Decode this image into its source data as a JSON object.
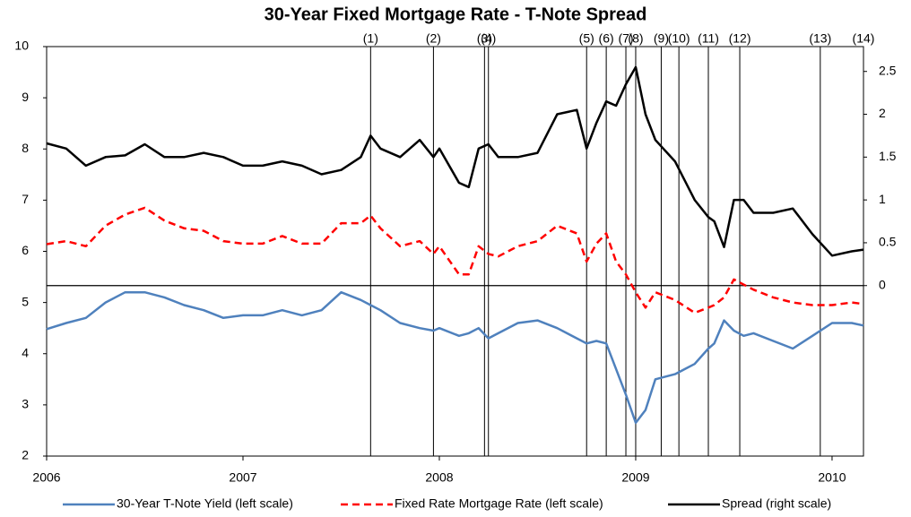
{
  "chart_data": {
    "type": "line",
    "title": "30-Year Fixed Mortgage Rate - T-Note Spread",
    "x": [
      2006.0,
      2006.1,
      2006.2,
      2006.3,
      2006.4,
      2006.5,
      2006.6,
      2006.7,
      2006.8,
      2006.9,
      2007.0,
      2007.1,
      2007.2,
      2007.3,
      2007.4,
      2007.5,
      2007.6,
      2007.65,
      2007.7,
      2007.8,
      2007.9,
      2007.97,
      2008.0,
      2008.1,
      2008.15,
      2008.2,
      2008.25,
      2008.3,
      2008.4,
      2008.5,
      2008.6,
      2008.7,
      2008.75,
      2008.8,
      2008.85,
      2008.9,
      2008.95,
      2009.0,
      2009.05,
      2009.1,
      2009.2,
      2009.3,
      2009.37,
      2009.4,
      2009.45,
      2009.5,
      2009.55,
      2009.6,
      2009.7,
      2009.8,
      2009.9,
      2010.0,
      2010.1,
      2010.16
    ],
    "series": [
      {
        "name": "30-Year T-Note Yield (left scale)",
        "color": "#4f81bd",
        "style": "solid",
        "values": [
          4.48,
          4.6,
          4.7,
          5.0,
          5.2,
          5.2,
          5.1,
          4.95,
          4.85,
          4.7,
          4.75,
          4.75,
          4.85,
          4.75,
          4.85,
          5.2,
          5.05,
          4.95,
          4.85,
          4.6,
          4.5,
          4.45,
          4.5,
          4.35,
          4.4,
          4.5,
          4.3,
          4.4,
          4.6,
          4.65,
          4.5,
          4.3,
          4.2,
          4.25,
          4.2,
          3.7,
          3.2,
          2.65,
          2.9,
          3.5,
          3.6,
          3.8,
          4.1,
          4.2,
          4.65,
          4.45,
          4.35,
          4.4,
          4.25,
          4.1,
          4.35,
          4.6,
          4.6,
          4.55
        ]
      },
      {
        "name": "Fixed Rate Mortgage Rate (left scale)",
        "color": "#ff0000",
        "style": "dashed",
        "values": [
          6.14,
          6.2,
          6.1,
          6.5,
          6.72,
          6.85,
          6.6,
          6.45,
          6.4,
          6.2,
          6.15,
          6.15,
          6.3,
          6.15,
          6.15,
          6.55,
          6.55,
          6.7,
          6.45,
          6.1,
          6.2,
          5.95,
          6.1,
          5.55,
          5.55,
          6.1,
          5.95,
          5.9,
          6.1,
          6.2,
          6.5,
          6.35,
          5.8,
          6.15,
          6.35,
          5.8,
          5.55,
          5.2,
          4.9,
          5.2,
          5.05,
          4.8,
          4.9,
          4.95,
          5.1,
          5.45,
          5.35,
          5.25,
          5.1,
          5.0,
          4.95,
          4.95,
          5.0,
          4.97
        ]
      },
      {
        "name": "Spread (right scale)",
        "color": "#000000",
        "style": "solid",
        "axis": "y2",
        "values": [
          1.66,
          1.6,
          1.4,
          1.5,
          1.52,
          1.65,
          1.5,
          1.5,
          1.55,
          1.5,
          1.4,
          1.4,
          1.45,
          1.4,
          1.3,
          1.35,
          1.5,
          1.75,
          1.6,
          1.5,
          1.7,
          1.5,
          1.6,
          1.2,
          1.15,
          1.6,
          1.65,
          1.5,
          1.5,
          1.55,
          2.0,
          2.05,
          1.6,
          1.9,
          2.15,
          2.1,
          2.35,
          2.55,
          2.0,
          1.7,
          1.45,
          1.0,
          0.8,
          0.75,
          0.45,
          1.0,
          1.0,
          0.85,
          0.85,
          0.9,
          0.6,
          0.35,
          0.4,
          0.42
        ]
      }
    ],
    "xlim": [
      2006,
      2010.16
    ],
    "xticks": [
      2006,
      2007,
      2008,
      2009,
      2010
    ],
    "ylim": [
      2,
      10
    ],
    "yticks": [
      2,
      3,
      4,
      5,
      6,
      7,
      8,
      9,
      10
    ],
    "y2lim": [
      -1.99,
      2.79
    ],
    "y2ticks": [
      0,
      0.5,
      1,
      1.5,
      2,
      2.5
    ],
    "y2_reference_line": 0,
    "events": [
      {
        "x": 2007.65,
        "label": "(1)"
      },
      {
        "x": 2007.97,
        "label": "(2)"
      },
      {
        "x": 2008.23,
        "label": "(3)"
      },
      {
        "x": 2008.25,
        "label": "(4)"
      },
      {
        "x": 2008.75,
        "label": "(5)"
      },
      {
        "x": 2008.85,
        "label": "(6)"
      },
      {
        "x": 2008.95,
        "label": "(7)"
      },
      {
        "x": 2009.0,
        "label": "(8)"
      },
      {
        "x": 2009.13,
        "label": "(9)"
      },
      {
        "x": 2009.22,
        "label": "(10)"
      },
      {
        "x": 2009.37,
        "label": "(11)"
      },
      {
        "x": 2009.53,
        "label": "(12)"
      },
      {
        "x": 2009.94,
        "label": "(13)"
      },
      {
        "x": 2010.16,
        "label": "(14)"
      }
    ],
    "legend": "bottom"
  }
}
